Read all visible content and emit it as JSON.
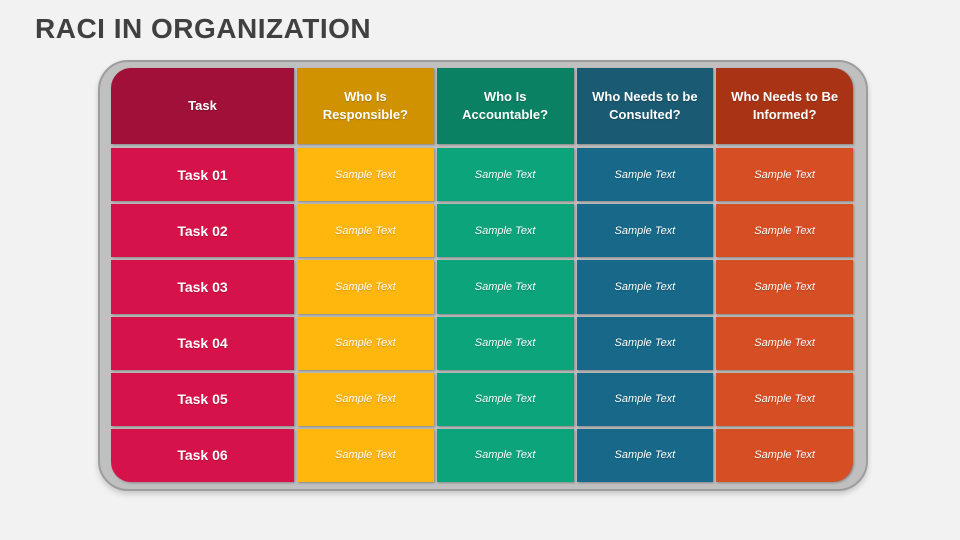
{
  "title": "RACI IN ORGANIZATION",
  "colors": {
    "background": "#F2F2F2",
    "title_text": "#404040",
    "panel_fill": "#C0C0C0",
    "panel_border": "#9D9D9D",
    "cell_text": "#FFFFFF"
  },
  "table": {
    "columns": [
      {
        "key": "task",
        "header": "Task",
        "header_color": "#A01038",
        "cell_color": "#D6124A"
      },
      {
        "key": "responsible",
        "header": "Who Is Responsible?",
        "header_color": "#D09200",
        "cell_color": "#FFB60D"
      },
      {
        "key": "accountable",
        "header": "Who Is Accountable?",
        "header_color": "#0B8163",
        "cell_color": "#0CA57B"
      },
      {
        "key": "consulted",
        "header": "Who Needs to be Consulted?",
        "header_color": "#1A5A72",
        "cell_color": "#186889"
      },
      {
        "key": "informed",
        "header": "Who Needs to Be Informed?",
        "header_color": "#A93415",
        "cell_color": "#D64E23"
      }
    ],
    "rows": [
      {
        "task": "Task 01",
        "responsible": "Sample Text",
        "accountable": "Sample Text",
        "consulted": "Sample Text",
        "informed": "Sample Text"
      },
      {
        "task": "Task 02",
        "responsible": "Sample Text",
        "accountable": "Sample Text",
        "consulted": "Sample Text",
        "informed": "Sample Text"
      },
      {
        "task": "Task 03",
        "responsible": "Sample Text",
        "accountable": "Sample Text",
        "consulted": "Sample Text",
        "informed": "Sample Text"
      },
      {
        "task": "Task 04",
        "responsible": "Sample Text",
        "accountable": "Sample Text",
        "consulted": "Sample Text",
        "informed": "Sample Text"
      },
      {
        "task": "Task 05",
        "responsible": "Sample Text",
        "accountable": "Sample Text",
        "consulted": "Sample Text",
        "informed": "Sample Text"
      },
      {
        "task": "Task 06",
        "responsible": "Sample Text",
        "accountable": "Sample Text",
        "consulted": "Sample Text",
        "informed": "Sample Text"
      }
    ]
  }
}
